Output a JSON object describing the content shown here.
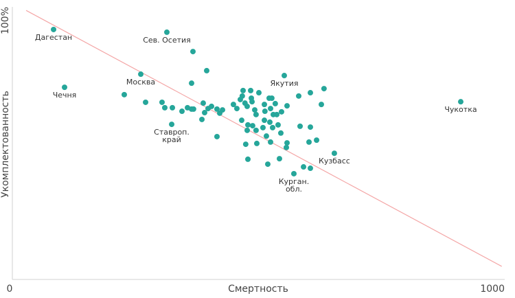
{
  "chart_data": {
    "type": "scatter",
    "xlabel": "Смертность",
    "ylabel": "Укомплектованность",
    "color": "#26a69a",
    "xlim": [
      0,
      1000
    ],
    "ylim": [
      0,
      100
    ],
    "xticks": [
      0,
      1000
    ],
    "yticks": [
      {
        "value": 100,
        "label": "100%"
      }
    ],
    "trend": {
      "color": "#f4a6a6",
      "x": [
        28,
        994
      ],
      "y": [
        98.7,
        4.8
      ]
    },
    "x": [
      83.7,
      313.8,
      366.8,
      394.7,
      260.8,
      552.3,
      106,
      364,
      227.3,
      270.6,
      304,
      309.6,
      325,
      344.5,
      355.7,
      364,
      368,
      387.7,
      390.5,
      397.5,
      404.5,
      415.6,
      421.2,
      426.8,
      385,
      323.6,
      415.6,
      449,
      456,
      463,
      468.6,
      467,
      472.5,
      476.9,
      484,
      485.4,
      486.8,
      500.7,
      492.3,
      495,
      465.8,
      478.4,
      488,
      477,
      495,
      511.9,
      509,
      513,
      511.9,
      521.6,
      527,
      524.4,
      530,
      534,
      528.6,
      523,
      539.7,
      537,
      545.3,
      546.7,
      557.9,
      516,
      474,
      496.5,
      524.4,
      557.9,
      556.5,
      581.6,
      605.3,
      633,
      627.6,
      584.4,
      605.3,
      602.5,
      617.9,
      478.4,
      518.8,
      542.5,
      654,
      571.8,
      591.4,
      605.3,
      910.7
    ],
    "y": [
      91.7,
      90.7,
      83.6,
      76.6,
      75.3,
      74.8,
      70.5,
      72,
      67.8,
      65,
      65,
      63,
      63,
      61.7,
      63,
      62.5,
      62.5,
      64.7,
      61.2,
      62.7,
      63.5,
      62.5,
      61,
      62.2,
      58.7,
      56.9,
      52.4,
      64.2,
      62.7,
      66,
      69.3,
      67.3,
      64.7,
      63.5,
      69.3,
      66.5,
      65.2,
      68.5,
      62.2,
      60.5,
      58.4,
      56.7,
      56.4,
      54.7,
      54.7,
      58.4,
      55.7,
      61.7,
      64.2,
      66.5,
      66.5,
      62.7,
      60.5,
      64.5,
      55.7,
      57.7,
      56.7,
      60.5,
      53.7,
      61.5,
      63.7,
      52.6,
      49.6,
      49.9,
      50.4,
      50.1,
      48.4,
      67.3,
      68.5,
      70,
      64.2,
      56.2,
      55.9,
      50.4,
      51.1,
      44.1,
      42.3,
      44.3,
      46.3,
      38.8,
      41.3,
      40.8,
      65.2
    ],
    "labels": [
      [
        "Дагестан"
      ],
      [
        "Сев. Осетия"
      ],
      null,
      null,
      [
        "Москва"
      ],
      [
        "Якутия"
      ],
      [
        "Чечня"
      ],
      null,
      null,
      null,
      null,
      null,
      null,
      null,
      null,
      null,
      null,
      null,
      null,
      null,
      null,
      null,
      null,
      null,
      null,
      [
        "Ставроп.",
        "край"
      ],
      null,
      null,
      null,
      null,
      null,
      null,
      null,
      null,
      null,
      null,
      null,
      null,
      null,
      null,
      null,
      null,
      null,
      null,
      null,
      null,
      null,
      null,
      null,
      null,
      null,
      null,
      null,
      null,
      null,
      null,
      null,
      null,
      null,
      null,
      null,
      null,
      null,
      null,
      null,
      null,
      null,
      null,
      null,
      null,
      null,
      null,
      null,
      null,
      null,
      null,
      null,
      null,
      [
        "Кузбасс"
      ],
      [
        "Курган.",
        "обл."
      ],
      null,
      null,
      [
        "Чукотка"
      ]
    ]
  }
}
